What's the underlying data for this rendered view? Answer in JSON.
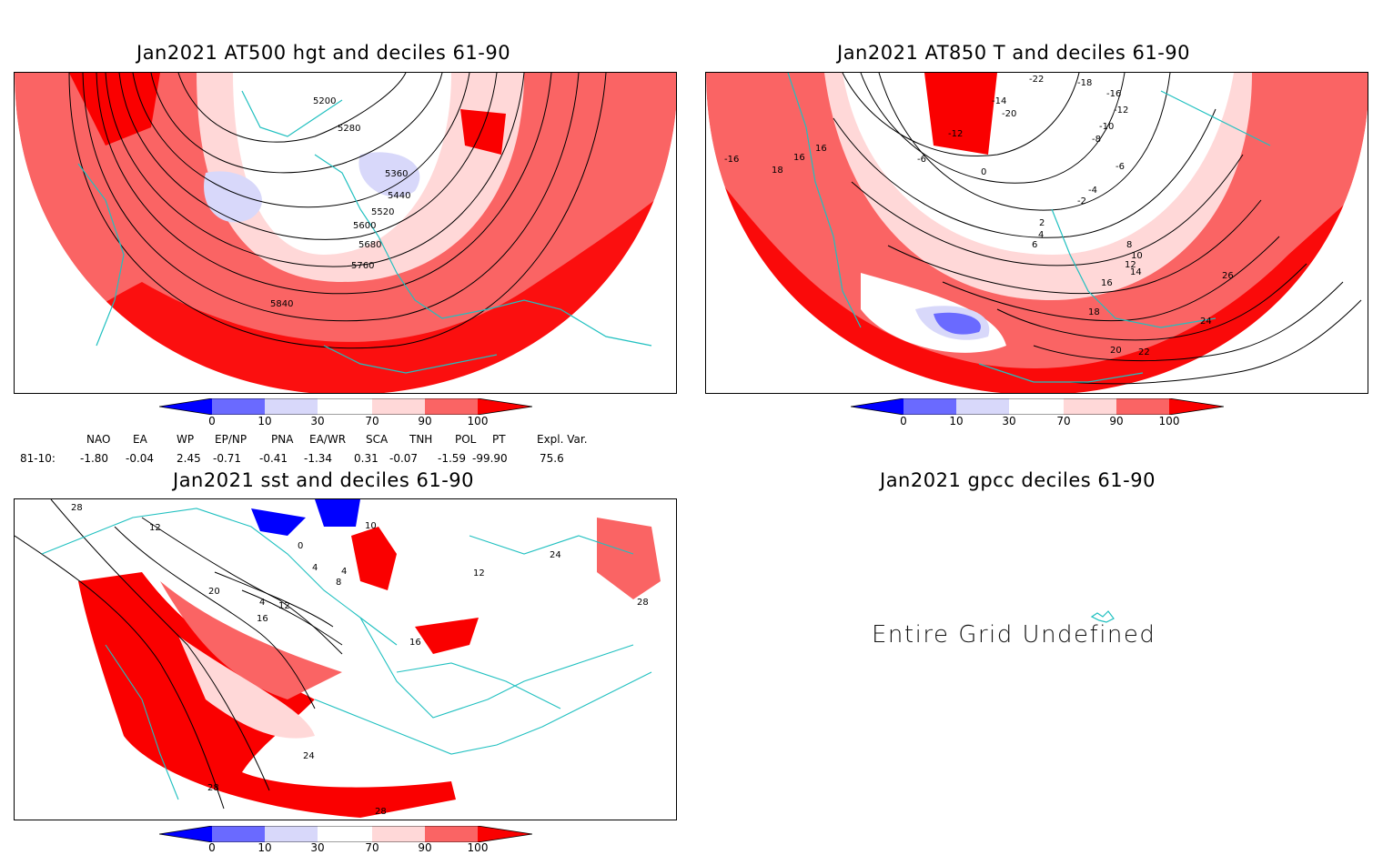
{
  "panels": {
    "p1": {
      "title": "Jan2021 AT500 hgt and deciles 61-90",
      "contour_labels": [
        "5200",
        "5280",
        "5360",
        "5440",
        "5520",
        "5600",
        "5680",
        "5760",
        "5840"
      ]
    },
    "p2": {
      "title": "Jan2021 AT850 T and deciles 61-90",
      "contour_labels": [
        "-22",
        "-20",
        "-18",
        "-16",
        "-14",
        "-12",
        "-10",
        "-8",
        "-6",
        "-4",
        "-2",
        "0",
        "2",
        "4",
        "6",
        "8",
        "10",
        "12",
        "14",
        "16",
        "18",
        "20",
        "22",
        "24",
        "26",
        "-16",
        "16",
        "16",
        "18",
        "-6",
        "-12"
      ]
    },
    "p3": {
      "title": "Jan2021 sst and deciles 61-90",
      "contour_labels": [
        "28",
        "12",
        "20",
        "16",
        "12",
        "4",
        "8",
        "4",
        "4",
        "0",
        "10",
        "12",
        "16",
        "24",
        "28",
        "28",
        "24",
        "28"
      ]
    },
    "p4": {
      "title": "Jan2021 gpcc deciles 61-90",
      "message": "Entire Grid Undefined"
    }
  },
  "colorbar": {
    "labels": [
      "0",
      "10",
      "30",
      "70",
      "90",
      "100"
    ],
    "colors": [
      "#0000ff",
      "#6a6aff",
      "#d8d8fa",
      "#ffffff",
      "#ffd8d8",
      "#fa6464",
      "#fa0000"
    ]
  },
  "indices": {
    "headers": [
      "NAO",
      "EA",
      "WP",
      "EP/NP",
      "PNA",
      "EA/WR",
      "SCA",
      "TNH",
      "POL",
      "PT",
      "Expl. Var."
    ],
    "row_label": "81-10:",
    "values": [
      "-1.80",
      "-0.04",
      "2.45",
      "-0.71",
      "-0.41",
      "-1.34",
      "0.31",
      "-0.07",
      "-1.59",
      "-99.90",
      "75.6"
    ]
  },
  "colors": {
    "coast": "#20c0c0",
    "contour": "#000000",
    "red": "#fa0000",
    "mid_red": "#fa6464",
    "light_red": "#ffd8d8",
    "light_blue": "#d8d8fa",
    "blue": "#6a6aff",
    "deep_blue": "#0000ff"
  }
}
